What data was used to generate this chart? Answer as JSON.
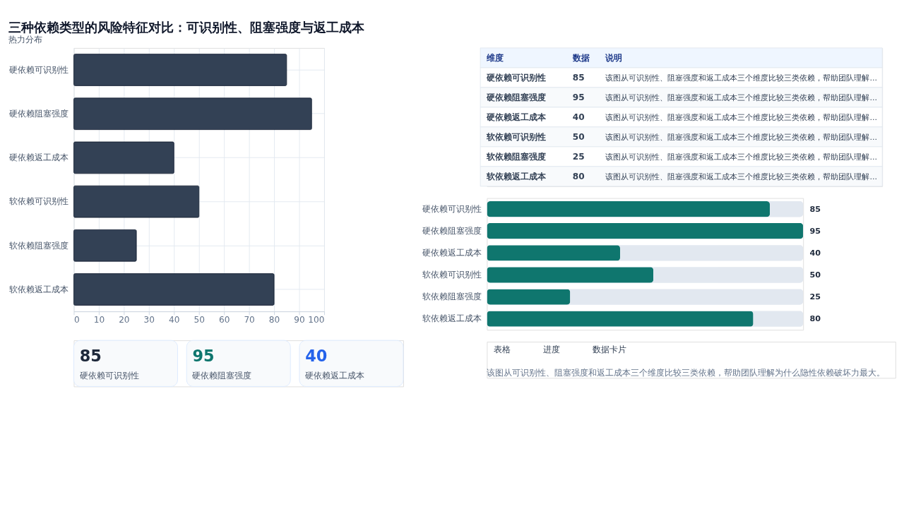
{
  "chart_data": [
    {
      "type": "bar",
      "title": "三种依赖类型的风险特征对比：可识别性、阻塞强度与返工成本",
      "annotations": [
        "热力分布"
      ],
      "orientation": "horizontal",
      "categories": [
        "硬依赖可识别性",
        "硬依赖阻塞强度",
        "硬依赖返工成本",
        "软依赖可识别性",
        "软依赖阻塞强度",
        "软依赖返工成本"
      ],
      "values": [
        85,
        95,
        40,
        50,
        25,
        80
      ],
      "color": "#334155",
      "xlim": [
        0,
        100
      ],
      "xticks": [
        0,
        10,
        20,
        30,
        40,
        50,
        60,
        70,
        80,
        90,
        100
      ],
      "grid": true
    },
    {
      "type": "other",
      "data_labels": true,
      "categories": [
        "硬依赖可识别性",
        "硬依赖阻塞强度",
        "硬依赖返工成本",
        "软依赖可识别性",
        "软依赖阻塞强度",
        "软依赖返工成本"
      ],
      "values": [
        85,
        95,
        40,
        50,
        25,
        80
      ],
      "annotations": [
        "维度",
        "数据",
        "说明",
        "该图从可识别性、阻塞强度和返工成本三个维度比较三类依赖，帮助团队理解...",
        "该图从可识别性、阻塞强度和返工成本三个维度比较三类依赖，帮助团队理解...",
        "该图从可识别性、阻塞强度和返工成本三个维度比较三类依赖，帮助团队理解...",
        "该图从可识别性、阻塞强度和返工成本三个维度比较三类依赖，帮助团队理解...",
        "该图从可识别性、阻塞强度和返工成本三个维度比较三类依赖，帮助团队理解...",
        "该图从可识别性、阻塞强度和返工成本三个维度比较三类依赖，帮助团队理解..."
      ]
    },
    {
      "type": "bar",
      "orientation": "horizontal",
      "categories": [
        "硬依赖可识别性",
        "硬依赖阻塞强度",
        "硬依赖返工成本",
        "软依赖可识别性",
        "软依赖阻塞强度",
        "软依赖返工成本"
      ],
      "values": [
        85,
        95,
        40,
        50,
        25,
        80
      ],
      "color": "#0f766e",
      "data_labels": true
    },
    {
      "type": "other",
      "data_labels": true,
      "categories": [
        "硬依赖可识别性",
        "硬依赖阻塞强度",
        "硬依赖返工成本"
      ],
      "values": [
        85,
        95,
        40
      ],
      "annotations": [
        "表格",
        "进度",
        "数据卡片",
        "该图从可识别性、阻塞强度和返工成本三个维度比较三类依赖，帮助团队理解为什么隐性依赖破坏力最大。"
      ]
    }
  ]
}
